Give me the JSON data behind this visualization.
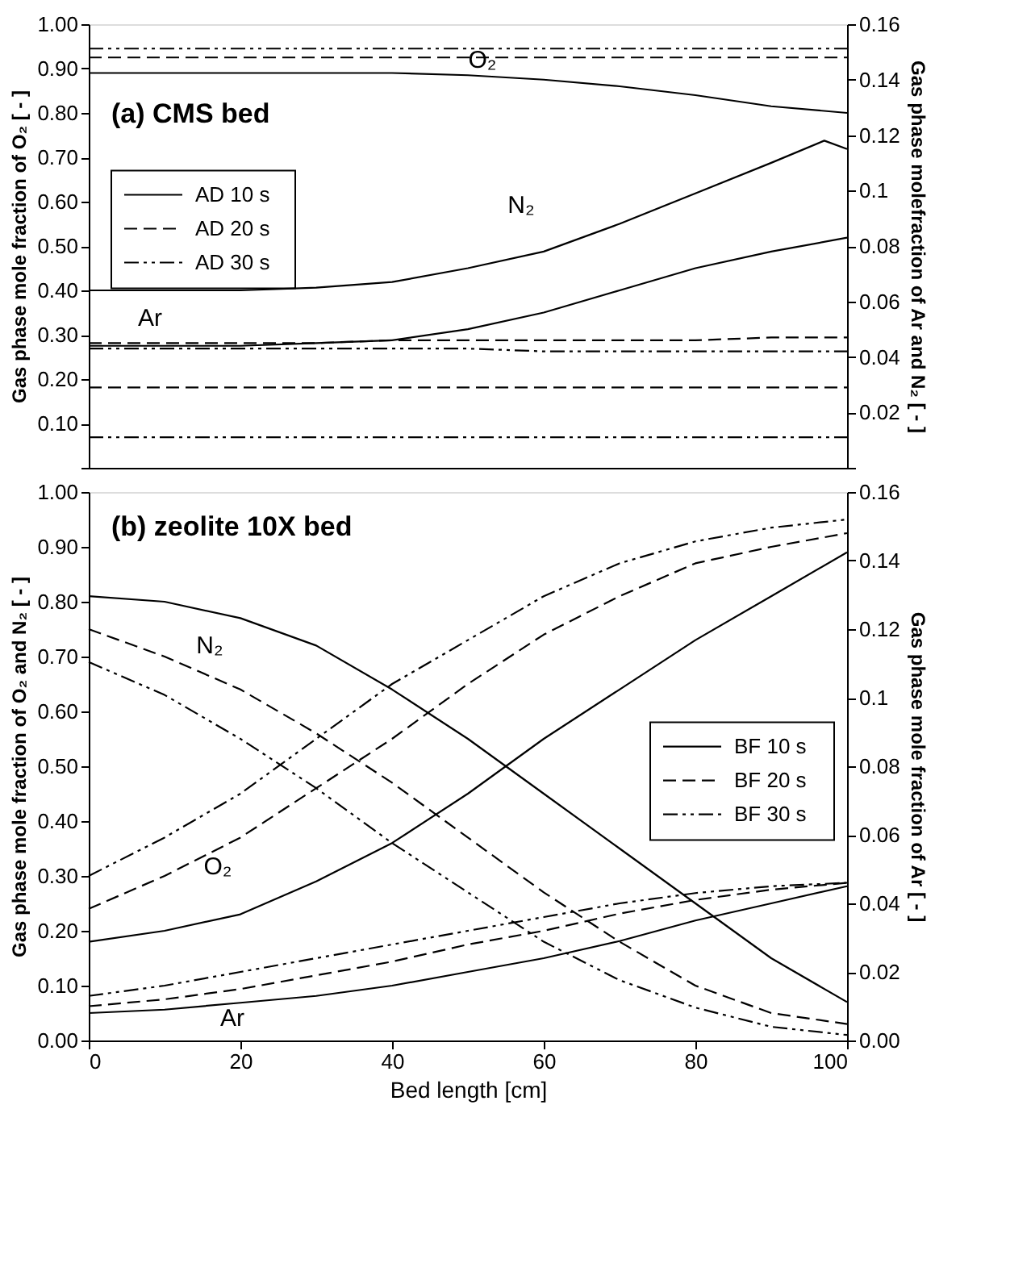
{
  "chart_data": [
    {
      "type": "line",
      "title": "(a) CMS bed",
      "ylabel": "Gas phase mole fraction of O₂ [ - ]",
      "y2label": "Gas phase molefraction of Ar and N₂ [ - ]",
      "x": [
        0,
        10,
        20,
        30,
        40,
        50,
        60,
        70,
        80,
        90,
        100
      ],
      "xlim": [
        0,
        100
      ],
      "xticks": [
        0,
        20,
        40,
        60,
        80,
        100
      ],
      "tick_labels": "y",
      "ylim": [
        0,
        1
      ],
      "yticks": [
        {
          "value": 0,
          "label": null
        },
        {
          "value": 0.1,
          "label": "0.10"
        },
        {
          "value": 0.2,
          "label": "0.20"
        },
        {
          "value": 0.3,
          "label": "0.30"
        },
        {
          "value": 0.4,
          "label": "0.40"
        },
        {
          "value": 0.5,
          "label": "0.50"
        },
        {
          "value": 0.6,
          "label": "0.60"
        },
        {
          "value": 0.7,
          "label": "0.70"
        },
        {
          "value": 0.8,
          "label": "0.80"
        },
        {
          "value": 0.9,
          "label": "0.90"
        },
        {
          "value": 1,
          "label": "1.00"
        }
      ],
      "y2lim": [
        0,
        0.16
      ],
      "y2ticks": [
        {
          "value": 0,
          "label": null
        },
        0.02,
        0.04,
        0.06,
        0.08,
        0.1,
        0.12,
        0.14,
        0.16
      ],
      "grid": false,
      "legend": "left",
      "marker": "none",
      "series": [
        {
          "name": "AD 10 s",
          "color": "#000000",
          "line_style": "solid",
          "values": [
            0.89,
            0.89,
            0.89,
            0.89,
            0.89,
            0.885,
            0.875,
            0.86,
            0.84,
            0.815,
            0.8
          ]
        },
        {
          "name": "AD 20 s",
          "color": "#000000",
          "line_style": "dashed",
          "values": [
            0.925,
            0.925,
            0.925,
            0.925,
            0.925,
            0.925,
            0.925,
            0.925,
            0.925,
            0.925,
            0.925
          ]
        },
        {
          "name": "AD 30 s",
          "color": "#000000",
          "line_style": "dashdot",
          "values": [
            0.945,
            0.945,
            0.945,
            0.945,
            0.945,
            0.945,
            0.945,
            0.945,
            0.945,
            0.945,
            0.945
          ]
        },
        {
          "color": "#000000",
          "line_style": "solid",
          "axis": "y2",
          "x": [
            0,
            10,
            20,
            30,
            40,
            50,
            60,
            70,
            80,
            90,
            97,
            100
          ],
          "values": [
            0.064,
            0.064,
            0.064,
            0.065,
            0.067,
            0.072,
            0.078,
            0.088,
            0.099,
            0.11,
            0.118,
            0.115
          ]
        },
        {
          "color": "#000000",
          "line_style": "dashed",
          "axis": "y2",
          "values": [
            0.029,
            0.029,
            0.029,
            0.029,
            0.029,
            0.029,
            0.029,
            0.029,
            0.029,
            0.029,
            0.029
          ]
        },
        {
          "color": "#000000",
          "line_style": "dashdot",
          "axis": "y2",
          "values": [
            0.011,
            0.011,
            0.011,
            0.011,
            0.011,
            0.011,
            0.011,
            0.011,
            0.011,
            0.011,
            0.011
          ]
        },
        {
          "color": "#000000",
          "line_style": "solid",
          "axis": "y2",
          "values": [
            0.044,
            0.044,
            0.044,
            0.045,
            0.046,
            0.05,
            0.056,
            0.064,
            0.072,
            0.078,
            0.083
          ]
        },
        {
          "color": "#000000",
          "line_style": "dashed",
          "axis": "y2",
          "values": [
            0.045,
            0.045,
            0.045,
            0.045,
            0.046,
            0.046,
            0.046,
            0.046,
            0.046,
            0.047,
            0.047
          ]
        },
        {
          "color": "#000000",
          "line_style": "dashdot",
          "axis": "y2",
          "values": [
            0.043,
            0.043,
            0.043,
            0.043,
            0.043,
            0.043,
            0.042,
            0.042,
            0.042,
            0.042,
            0.042
          ]
        }
      ],
      "annotations": [
        "O₂",
        "N₂",
        "Ar"
      ]
    },
    {
      "type": "line",
      "title": "(b) zeolite 10X bed",
      "xlabel": "Bed length [cm]",
      "ylabel": "Gas phase mole fraction of O₂ and N₂ [ - ]",
      "y2label": "Gas phase mole fraction of Ar [ - ]",
      "x": [
        0,
        10,
        20,
        30,
        40,
        50,
        60,
        70,
        80,
        90,
        100
      ],
      "xlim": [
        0,
        100
      ],
      "xticks": [
        0,
        20,
        40,
        60,
        80,
        100
      ],
      "ylim": [
        0,
        1
      ],
      "yticks": [
        {
          "value": 0,
          "label": "0.00"
        },
        {
          "value": 0.1,
          "label": "0.10"
        },
        {
          "value": 0.2,
          "label": "0.20"
        },
        {
          "value": 0.3,
          "label": "0.30"
        },
        {
          "value": 0.4,
          "label": "0.40"
        },
        {
          "value": 0.5,
          "label": "0.50"
        },
        {
          "value": 0.6,
          "label": "0.60"
        },
        {
          "value": 0.7,
          "label": "0.70"
        },
        {
          "value": 0.8,
          "label": "0.80"
        },
        {
          "value": 0.9,
          "label": "0.90"
        },
        {
          "value": 1,
          "label": "1.00"
        }
      ],
      "y2lim": [
        0,
        0.16
      ],
      "y2ticks": [
        {
          "value": 0,
          "label": "0.00"
        },
        0.02,
        0.04,
        0.06,
        0.08,
        0.1,
        0.12,
        0.14,
        0.16
      ],
      "grid": false,
      "legend": "right",
      "marker": "none",
      "series": [
        {
          "name": "BF 10 s",
          "color": "#000000",
          "line_style": "solid",
          "values": [
            0.81,
            0.8,
            0.77,
            0.72,
            0.64,
            0.55,
            0.45,
            0.35,
            0.25,
            0.15,
            0.07
          ]
        },
        {
          "name": "BF 20 s",
          "color": "#000000",
          "line_style": "dashed",
          "values": [
            0.75,
            0.7,
            0.64,
            0.56,
            0.47,
            0.37,
            0.27,
            0.18,
            0.1,
            0.05,
            0.03
          ]
        },
        {
          "name": "BF 30 s",
          "color": "#000000",
          "line_style": "dashdot",
          "values": [
            0.69,
            0.63,
            0.55,
            0.46,
            0.36,
            0.27,
            0.18,
            0.11,
            0.06,
            0.025,
            0.01
          ]
        },
        {
          "color": "#000000",
          "line_style": "solid",
          "values": [
            0.18,
            0.2,
            0.23,
            0.29,
            0.36,
            0.45,
            0.55,
            0.64,
            0.73,
            0.81,
            0.89
          ]
        },
        {
          "color": "#000000",
          "line_style": "dashed",
          "values": [
            0.24,
            0.3,
            0.37,
            0.46,
            0.55,
            0.65,
            0.74,
            0.81,
            0.87,
            0.9,
            0.925
          ]
        },
        {
          "color": "#000000",
          "line_style": "dashdot",
          "values": [
            0.3,
            0.37,
            0.45,
            0.55,
            0.65,
            0.73,
            0.81,
            0.87,
            0.91,
            0.935,
            0.95
          ]
        },
        {
          "color": "#000000",
          "line_style": "solid",
          "axis": "y2",
          "values": [
            0.008,
            0.009,
            0.011,
            0.013,
            0.016,
            0.02,
            0.024,
            0.029,
            0.035,
            0.04,
            0.045
          ]
        },
        {
          "color": "#000000",
          "line_style": "dashed",
          "axis": "y2",
          "values": [
            0.01,
            0.012,
            0.015,
            0.019,
            0.023,
            0.028,
            0.032,
            0.037,
            0.041,
            0.044,
            0.046
          ]
        },
        {
          "color": "#000000",
          "line_style": "dashdot",
          "axis": "y2",
          "values": [
            0.013,
            0.016,
            0.02,
            0.024,
            0.028,
            0.032,
            0.036,
            0.04,
            0.043,
            0.045,
            0.046
          ]
        }
      ],
      "annotations": [
        "N₂",
        "O₂",
        "Ar"
      ]
    }
  ]
}
